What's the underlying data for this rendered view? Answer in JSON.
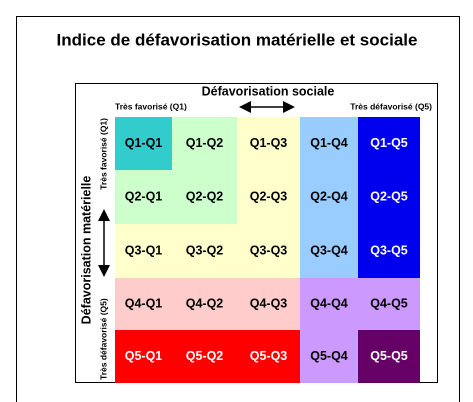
{
  "title": "Indice de défavorisation matérielle et sociale",
  "axes": {
    "social": {
      "title": "Défavorisation sociale",
      "low": "Très favorisé (Q1)",
      "high": "Très défavorisé (Q5)"
    },
    "material": {
      "title": "Défavorisation matérielle",
      "low": "Très favorisé (Q1)",
      "high": "Très défavorisé (Q5)"
    }
  },
  "grid": {
    "rows": [
      [
        {
          "label": "Q1-Q1",
          "color": "#33cccc"
        },
        {
          "label": "Q1-Q2",
          "color": "#ccffcc"
        },
        {
          "label": "Q1-Q3",
          "color": "#ffffcc"
        },
        {
          "label": "Q1-Q4",
          "color": "#99ccff"
        },
        {
          "label": "Q1-Q5",
          "color": "#0000ee"
        }
      ],
      [
        {
          "label": "Q2-Q1",
          "color": "#ccffcc"
        },
        {
          "label": "Q2-Q2",
          "color": "#ccffcc"
        },
        {
          "label": "Q2-Q3",
          "color": "#ffffcc"
        },
        {
          "label": "Q2-Q4",
          "color": "#99ccff"
        },
        {
          "label": "Q2-Q5",
          "color": "#0000ee"
        }
      ],
      [
        {
          "label": "Q3-Q1",
          "color": "#ffffcc"
        },
        {
          "label": "Q3-Q2",
          "color": "#ffffcc"
        },
        {
          "label": "Q3-Q3",
          "color": "#ffffcc"
        },
        {
          "label": "Q3-Q4",
          "color": "#99ccff"
        },
        {
          "label": "Q3-Q5",
          "color": "#0000ee"
        }
      ],
      [
        {
          "label": "Q4-Q1",
          "color": "#ffcccc"
        },
        {
          "label": "Q4-Q2",
          "color": "#ffcccc"
        },
        {
          "label": "Q4-Q3",
          "color": "#ffcccc"
        },
        {
          "label": "Q4-Q4",
          "color": "#cc99ff"
        },
        {
          "label": "Q4-Q5",
          "color": "#cc99ff"
        }
      ],
      [
        {
          "label": "Q5-Q1",
          "color": "#ff0000"
        },
        {
          "label": "Q5-Q2",
          "color": "#ff0000"
        },
        {
          "label": "Q5-Q3",
          "color": "#ff0000"
        },
        {
          "label": "Q5-Q4",
          "color": "#cc99ff"
        },
        {
          "label": "Q5-Q5",
          "color": "#660066"
        }
      ]
    ]
  }
}
